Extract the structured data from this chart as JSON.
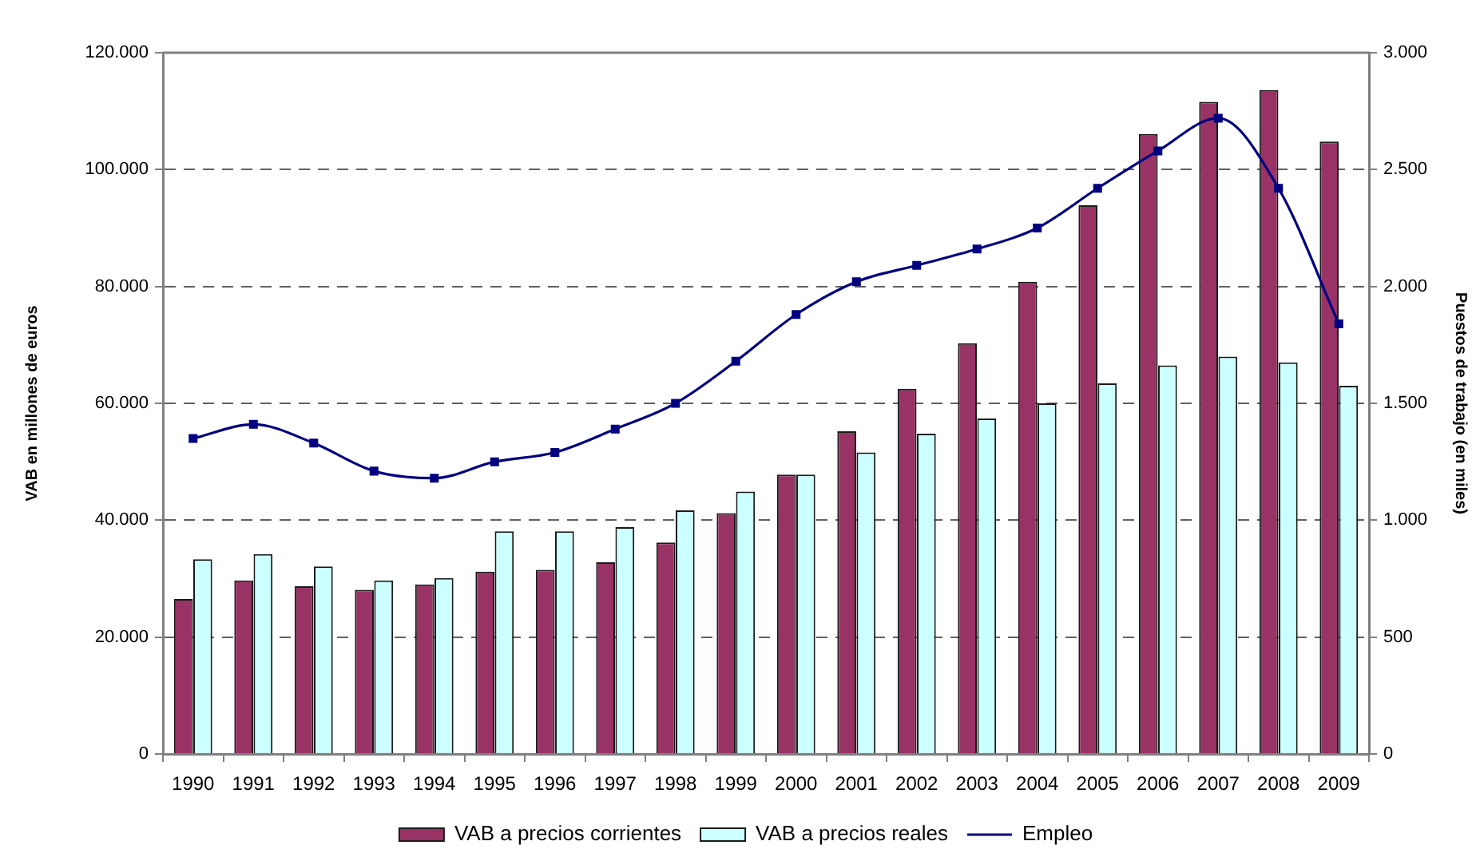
{
  "chart_data": {
    "type": "bar",
    "categories": [
      "1990",
      "1991",
      "1992",
      "1993",
      "1994",
      "1995",
      "1996",
      "1997",
      "1998",
      "1999",
      "2000",
      "2001",
      "2002",
      "2003",
      "2004",
      "2005",
      "2006",
      "2007",
      "2008",
      "2009"
    ],
    "series": [
      {
        "name": "VAB a precios corrientes",
        "color": "#993366",
        "values": [
          26500,
          29700,
          28700,
          28100,
          29000,
          31200,
          31500,
          32800,
          36200,
          41200,
          47800,
          55200,
          62500,
          70300,
          80800,
          93900,
          106100,
          111600,
          113600,
          104800
        ]
      },
      {
        "name": "VAB a precios reales",
        "color": "#ccffff",
        "values": [
          33300,
          34200,
          32100,
          29700,
          30100,
          38100,
          38100,
          38800,
          41700,
          44900,
          47800,
          51600,
          54800,
          57400,
          60000,
          63400,
          66500,
          68000,
          67000,
          63000
        ]
      },
      {
        "name": "Empleo",
        "type": "line",
        "axis": "y2",
        "color": "#000080",
        "values": [
          1350,
          1410,
          1330,
          1210,
          1180,
          1250,
          1290,
          1390,
          1500,
          1680,
          1880,
          2020,
          2090,
          2160,
          2250,
          2420,
          2580,
          2720,
          2420,
          1840
        ]
      }
    ],
    "ylabel": "VAB en millones de euros",
    "y2label": "Puestos de trabajo (en miles)",
    "ylim": [
      0,
      120000
    ],
    "yticks": [
      0,
      {
        "value": 20000,
        "label": "20.000"
      },
      {
        "value": 40000,
        "label": "40.000"
      },
      {
        "value": 60000,
        "label": "60.000"
      },
      {
        "value": 80000,
        "label": "80.000"
      },
      {
        "value": 100000,
        "label": "100.000"
      },
      {
        "value": 120000,
        "label": "120.000"
      }
    ],
    "y2lim": [
      0,
      3000
    ],
    "y2ticks": [
      0,
      500,
      {
        "value": 1000,
        "label": "1.000"
      },
      {
        "value": 1500,
        "label": "1.500"
      },
      {
        "value": 2000,
        "label": "2.000"
      },
      {
        "value": 2500,
        "label": "2.500"
      },
      {
        "value": 3000,
        "label": "3.000"
      }
    ],
    "grid": "y",
    "legend": "bottom",
    "marker": "square"
  }
}
